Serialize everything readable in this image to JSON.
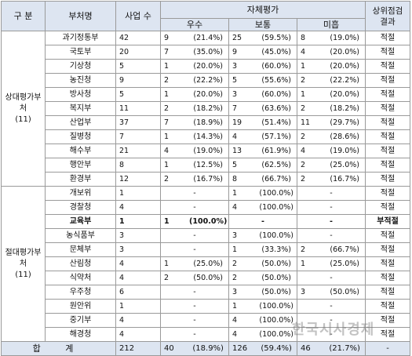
{
  "header": {
    "col_group": "구 분",
    "col_dept": "부처명",
    "col_count": "사업 수",
    "col_self": "자체평가",
    "col_excellent": "우수",
    "col_normal": "보통",
    "col_poor": "미흡",
    "col_upper": "상위점검결과"
  },
  "groups": [
    {
      "label": "상대평가부처\n(11)",
      "rows": [
        {
          "dept": "과기정통부",
          "count": "42",
          "ex_n": "9",
          "ex_p": "(21.4%)",
          "no_n": "25",
          "no_p": "(59.5%)",
          "po_n": "8",
          "po_p": "(19.0%)",
          "result": "적절",
          "bold": false
        },
        {
          "dept": "국토부",
          "count": "20",
          "ex_n": "7",
          "ex_p": "(35.0%)",
          "no_n": "9",
          "no_p": "(45.0%)",
          "po_n": "4",
          "po_p": "(20.0%)",
          "result": "적절",
          "bold": false
        },
        {
          "dept": "기상청",
          "count": "5",
          "ex_n": "1",
          "ex_p": "(20.0%)",
          "no_n": "3",
          "no_p": "(60.0%)",
          "po_n": "1",
          "po_p": "(20.0%)",
          "result": "적절",
          "bold": false
        },
        {
          "dept": "농진청",
          "count": "9",
          "ex_n": "2",
          "ex_p": "(22.2%)",
          "no_n": "5",
          "no_p": "(55.6%)",
          "po_n": "2",
          "po_p": "(22.2%)",
          "result": "적절",
          "bold": false
        },
        {
          "dept": "방사청",
          "count": "5",
          "ex_n": "1",
          "ex_p": "(20.0%)",
          "no_n": "3",
          "no_p": "(60.0%)",
          "po_n": "1",
          "po_p": "(20.0%)",
          "result": "적절",
          "bold": false
        },
        {
          "dept": "복지부",
          "count": "11",
          "ex_n": "2",
          "ex_p": "(18.2%)",
          "no_n": "7",
          "no_p": "(63.6%)",
          "po_n": "2",
          "po_p": "(18.2%)",
          "result": "적절",
          "bold": false
        },
        {
          "dept": "산업부",
          "count": "37",
          "ex_n": "7",
          "ex_p": "(18.9%)",
          "no_n": "19",
          "no_p": "(51.4%)",
          "po_n": "11",
          "po_p": "(29.7%)",
          "result": "적절",
          "bold": false
        },
        {
          "dept": "질병청",
          "count": "7",
          "ex_n": "1",
          "ex_p": "(14.3%)",
          "no_n": "4",
          "no_p": "(57.1%)",
          "po_n": "2",
          "po_p": "(28.6%)",
          "result": "적절",
          "bold": false
        },
        {
          "dept": "해수부",
          "count": "21",
          "ex_n": "4",
          "ex_p": "(19.0%)",
          "no_n": "13",
          "no_p": "(61.9%)",
          "po_n": "4",
          "po_p": "(19.0%)",
          "result": "적절",
          "bold": false
        },
        {
          "dept": "행안부",
          "count": "8",
          "ex_n": "1",
          "ex_p": "(12.5%)",
          "no_n": "5",
          "no_p": "(62.5%)",
          "po_n": "2",
          "po_p": "(25.0%)",
          "result": "적절",
          "bold": false
        },
        {
          "dept": "환경부",
          "count": "12",
          "ex_n": "2",
          "ex_p": "(16.7%)",
          "no_n": "8",
          "no_p": "(66.7%)",
          "po_n": "2",
          "po_p": "(16.7%)",
          "result": "적절",
          "bold": false
        }
      ]
    },
    {
      "label": "절대평가부처\n(11)",
      "rows": [
        {
          "dept": "개보위",
          "count": "1",
          "ex_n": "",
          "ex_p": "-",
          "no_n": "1",
          "no_p": "(100.0%)",
          "po_n": "",
          "po_p": "-",
          "result": "적절",
          "bold": false
        },
        {
          "dept": "경찰청",
          "count": "4",
          "ex_n": "",
          "ex_p": "-",
          "no_n": "4",
          "no_p": "(100.0%)",
          "po_n": "",
          "po_p": "-",
          "result": "적절",
          "bold": false
        },
        {
          "dept": "교육부",
          "count": "1",
          "ex_n": "1",
          "ex_p": "(100.0%)",
          "no_n": "",
          "no_p": "-",
          "po_n": "",
          "po_p": "-",
          "result": "부적절",
          "bold": true
        },
        {
          "dept": "농식품부",
          "count": "3",
          "ex_n": "",
          "ex_p": "-",
          "no_n": "3",
          "no_p": "(100.0%)",
          "po_n": "",
          "po_p": "-",
          "result": "적절",
          "bold": false
        },
        {
          "dept": "문체부",
          "count": "3",
          "ex_n": "",
          "ex_p": "-",
          "no_n": "1",
          "no_p": "(33.3%)",
          "po_n": "2",
          "po_p": "(66.7%)",
          "result": "적절",
          "bold": false
        },
        {
          "dept": "산림청",
          "count": "4",
          "ex_n": "1",
          "ex_p": "(25.0%)",
          "no_n": "2",
          "no_p": "(50.0%)",
          "po_n": "1",
          "po_p": "(25.0%)",
          "result": "적절",
          "bold": false
        },
        {
          "dept": "식약처",
          "count": "4",
          "ex_n": "2",
          "ex_p": "(50.0%)",
          "no_n": "2",
          "no_p": "(50.0%)",
          "po_n": "",
          "po_p": "-",
          "result": "적절",
          "bold": false
        },
        {
          "dept": "우주청",
          "count": "6",
          "ex_n": "",
          "ex_p": "-",
          "no_n": "3",
          "no_p": "(50.0%)",
          "po_n": "3",
          "po_p": "(50.0%)",
          "result": "적절",
          "bold": false
        },
        {
          "dept": "원안위",
          "count": "1",
          "ex_n": "",
          "ex_p": "-",
          "no_n": "1",
          "no_p": "(100.0%)",
          "po_n": "",
          "po_p": "-",
          "result": "적절",
          "bold": false
        },
        {
          "dept": "중기부",
          "count": "4",
          "ex_n": "",
          "ex_p": "-",
          "no_n": "4",
          "no_p": "(100.0%)",
          "po_n": "",
          "po_p": "-",
          "result": "적절",
          "bold": false
        },
        {
          "dept": "해경청",
          "count": "4",
          "ex_n": "",
          "ex_p": "-",
          "no_n": "4",
          "no_p": "(100.0%)",
          "po_n": "",
          "po_p": "-",
          "result": "적절",
          "bold": false
        }
      ]
    }
  ],
  "total": {
    "label": "합 계",
    "count": "212",
    "ex_n": "40",
    "ex_p": "(18.9%)",
    "no_n": "126",
    "no_p": "(59.4%)",
    "po_n": "46",
    "po_p": "(21.7%)",
    "result": "-"
  },
  "watermark": "한국시사경제",
  "colors": {
    "header_bg": "#dde5f1",
    "border": "#9a9a9a"
  }
}
